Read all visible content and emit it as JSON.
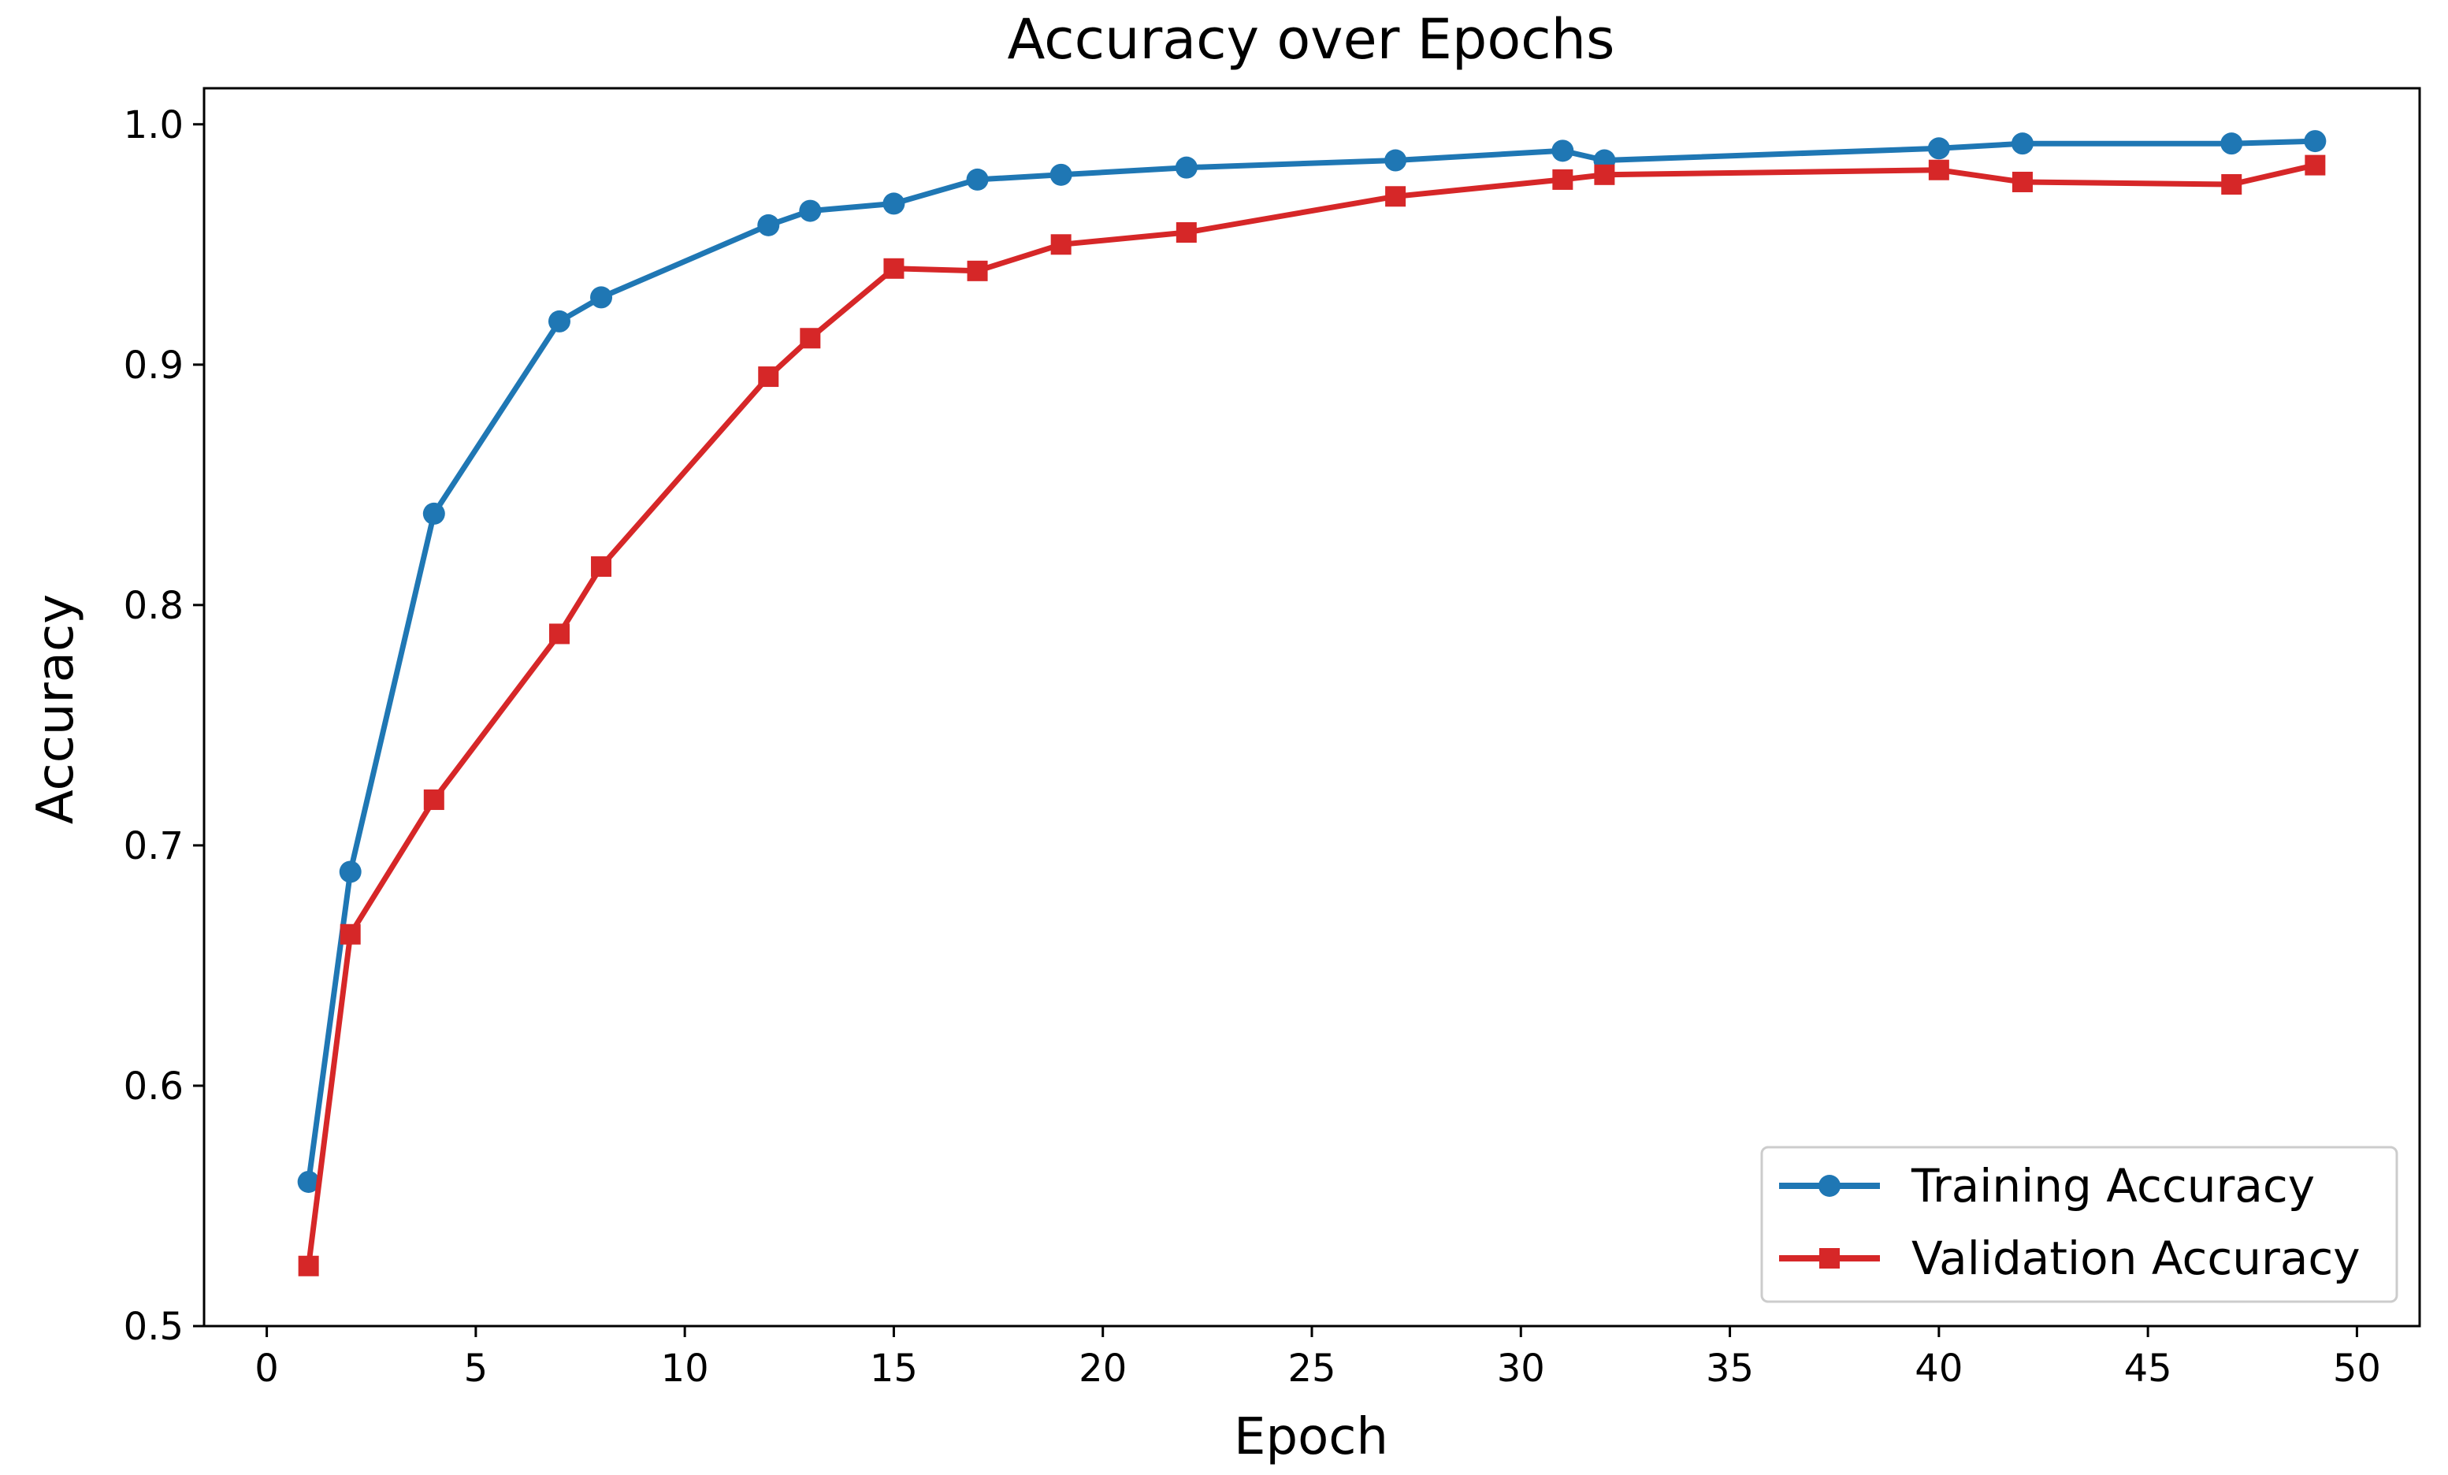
{
  "chart_data": {
    "type": "line",
    "title": "Accuracy over Epochs",
    "xlabel": "Epoch",
    "ylabel": "Accuracy",
    "xlim": [
      -1.5,
      51.5
    ],
    "ylim": [
      0.5,
      1.015
    ],
    "xticks": [
      0,
      5,
      10,
      15,
      20,
      25,
      30,
      35,
      40,
      45,
      50
    ],
    "yticks": [
      0.5,
      0.6,
      0.7,
      0.8,
      0.9,
      1.0
    ],
    "ytick_labels": [
      "0.5",
      "0.6",
      "0.7",
      "0.8",
      "0.9",
      "1.0"
    ],
    "grid": false,
    "legend_position": "lower-right",
    "series": [
      {
        "name": "Training Accuracy",
        "color": "#1f77b4",
        "marker": "circle",
        "x": [
          1,
          2,
          4,
          7,
          8,
          12,
          13,
          15,
          17,
          19,
          22,
          27,
          31,
          32,
          40,
          42,
          47,
          49
        ],
        "y": [
          0.56,
          0.689,
          0.838,
          0.918,
          0.928,
          0.958,
          0.964,
          0.967,
          0.977,
          0.979,
          0.982,
          0.985,
          0.989,
          0.985,
          0.99,
          0.992,
          0.992,
          0.993
        ]
      },
      {
        "name": "Validation Accuracy",
        "color": "#d62728",
        "marker": "square",
        "x": [
          1,
          2,
          4,
          7,
          8,
          12,
          13,
          15,
          17,
          19,
          22,
          27,
          31,
          32,
          40,
          42,
          47,
          49
        ],
        "y": [
          0.525,
          0.663,
          0.719,
          0.788,
          0.816,
          0.895,
          0.911,
          0.94,
          0.939,
          0.95,
          0.955,
          0.97,
          0.977,
          0.979,
          0.981,
          0.976,
          0.975,
          0.983
        ]
      }
    ]
  }
}
